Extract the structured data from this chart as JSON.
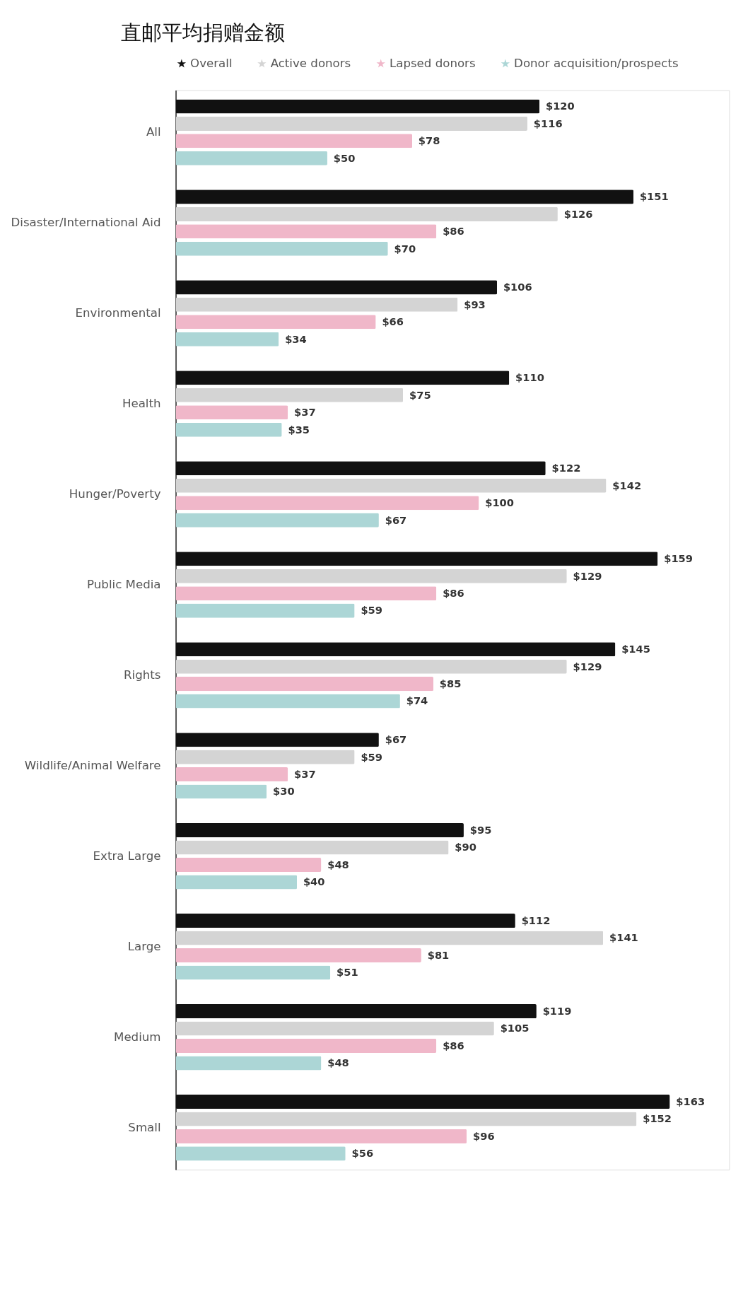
{
  "chart_data": {
    "type": "bar",
    "orientation": "horizontal",
    "title": "直邮平均捐赠金额",
    "legend": "top",
    "categories": [
      "All",
      "Disaster/International Aid",
      "Environmental",
      "Health",
      "Hunger/Poverty",
      "Public Media",
      "Rights",
      "Wildlife/Animal Welfare",
      "Extra Large",
      "Large",
      "Medium",
      "Small"
    ],
    "series": [
      {
        "name": "Overall",
        "color": "#111111",
        "values": [
          120,
          151,
          106,
          110,
          122,
          159,
          145,
          67,
          95,
          112,
          119,
          163
        ],
        "value_labels": [
          "$120",
          "$151",
          "$106",
          "$110",
          "$122",
          "$159",
          "$145",
          "$67",
          "$95",
          "$112",
          "$119",
          "$163"
        ]
      },
      {
        "name": "Active donors",
        "color": "#d4d4d4",
        "values": [
          116,
          126,
          93,
          75,
          142,
          129,
          129,
          59,
          90,
          141,
          105,
          152
        ],
        "value_labels": [
          "$116",
          "$126",
          "$93",
          "$75",
          "$142",
          "$129",
          "$129",
          "$59",
          "$90",
          "$141",
          "$105",
          "$152"
        ]
      },
      {
        "name": "Lapsed donors",
        "color": "#f0b7c9",
        "values": [
          78,
          86,
          66,
          37,
          100,
          86,
          85,
          37,
          48,
          81,
          86,
          96
        ],
        "value_labels": [
          "$78",
          "$86",
          "$66",
          "$37",
          "$100",
          "$86",
          "$85",
          "$37",
          "$48",
          "$81",
          "$86",
          "$96"
        ]
      },
      {
        "name": "Donor acquisition/prospects",
        "color": "#acd6d6",
        "values": [
          50,
          70,
          34,
          35,
          67,
          59,
          74,
          30,
          40,
          51,
          48,
          56
        ],
        "value_labels": [
          "$50",
          "$70",
          "$34",
          "$35",
          "$67",
          "$59",
          "$74",
          "$30",
          "$40",
          "$51",
          "$48",
          "$56"
        ]
      }
    ]
  }
}
